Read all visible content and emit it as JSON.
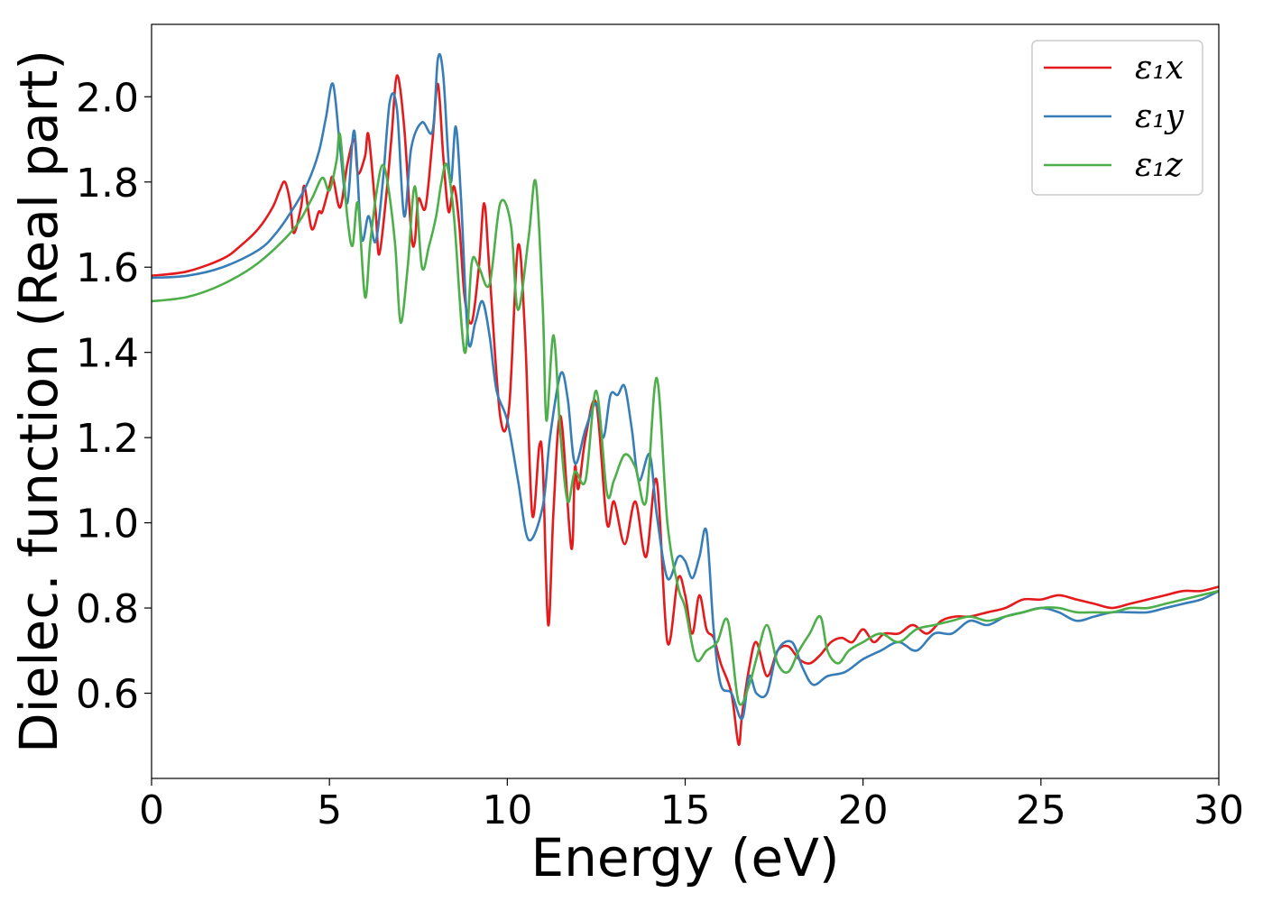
{
  "chart_data": {
    "type": "line",
    "title": "",
    "xlabel": "Energy (eV)",
    "ylabel": "Dielec. function (Real part)",
    "xlim": [
      0,
      30
    ],
    "ylim": [
      0.4,
      2.17
    ],
    "x_ticks": [
      0,
      5,
      10,
      15,
      20,
      25,
      30
    ],
    "y_ticks": [
      0.6,
      0.8,
      1.0,
      1.2,
      1.4,
      1.6,
      1.8,
      2.0
    ],
    "x_tick_labels": [
      "0",
      "5",
      "10",
      "15",
      "20",
      "25",
      "30"
    ],
    "y_tick_labels": [
      "0.6",
      "0.8",
      "1.0",
      "1.2",
      "1.4",
      "1.6",
      "1.8",
      "2.0"
    ],
    "grid": false,
    "legend_position": "top-right",
    "series": [
      {
        "name": "ε₁x",
        "color": "#e41a1c",
        "x": [
          0,
          1,
          2,
          2.5,
          3,
          3.4,
          3.6,
          3.75,
          3.9,
          4.0,
          4.2,
          4.3,
          4.5,
          4.7,
          4.8,
          5.0,
          5.1,
          5.3,
          5.5,
          5.7,
          5.8,
          6.0,
          6.1,
          6.3,
          6.4,
          6.6,
          6.75,
          6.9,
          7.1,
          7.3,
          7.4,
          7.5,
          7.7,
          7.9,
          8.05,
          8.2,
          8.35,
          8.5,
          8.65,
          8.8,
          9.0,
          9.2,
          9.35,
          9.5,
          9.8,
          10.05,
          10.3,
          10.5,
          10.7,
          10.9,
          11.0,
          11.15,
          11.3,
          11.5,
          11.8,
          11.9,
          12.0,
          12.2,
          12.5,
          12.8,
          13.0,
          13.3,
          13.6,
          13.9,
          14.2,
          14.5,
          14.8,
          15.0,
          15.2,
          15.4,
          15.6,
          15.8,
          16.0,
          16.3,
          16.5,
          16.6,
          16.8,
          17.0,
          17.3,
          17.6,
          17.9,
          18.2,
          18.5,
          18.8,
          19.1,
          19.4,
          19.7,
          20.0,
          20.3,
          20.6,
          21.0,
          21.4,
          21.8,
          22.2,
          22.6,
          23.0,
          23.5,
          24.0,
          24.5,
          25.0,
          25.5,
          26.0,
          26.5,
          27.0,
          27.5,
          28.0,
          28.5,
          29.0,
          29.5,
          30.0
        ],
        "y": [
          1.58,
          1.59,
          1.62,
          1.65,
          1.69,
          1.74,
          1.78,
          1.8,
          1.75,
          1.68,
          1.74,
          1.79,
          1.69,
          1.73,
          1.73,
          1.79,
          1.81,
          1.74,
          1.84,
          1.9,
          1.82,
          1.86,
          1.91,
          1.73,
          1.63,
          1.77,
          1.91,
          2.05,
          1.93,
          1.68,
          1.66,
          1.76,
          1.74,
          1.9,
          2.03,
          1.86,
          1.73,
          1.79,
          1.7,
          1.53,
          1.47,
          1.6,
          1.75,
          1.59,
          1.25,
          1.27,
          1.65,
          1.44,
          1.02,
          1.18,
          1.13,
          0.76,
          1.03,
          1.25,
          0.94,
          1.13,
          1.08,
          1.2,
          1.28,
          1.0,
          1.05,
          0.95,
          1.05,
          0.92,
          1.1,
          0.72,
          0.87,
          0.83,
          0.74,
          0.83,
          0.75,
          0.73,
          0.67,
          0.6,
          0.48,
          0.55,
          0.66,
          0.72,
          0.64,
          0.7,
          0.71,
          0.68,
          0.67,
          0.69,
          0.72,
          0.73,
          0.72,
          0.75,
          0.72,
          0.74,
          0.74,
          0.76,
          0.74,
          0.77,
          0.78,
          0.78,
          0.79,
          0.8,
          0.82,
          0.82,
          0.83,
          0.82,
          0.81,
          0.8,
          0.81,
          0.82,
          0.83,
          0.84,
          0.84,
          0.85
        ]
      },
      {
        "name": "ε₁y",
        "color": "#377eb8",
        "x": [
          0,
          1,
          2,
          3,
          3.5,
          4,
          4.4,
          4.7,
          4.9,
          5.1,
          5.3,
          5.5,
          5.7,
          5.9,
          6.1,
          6.3,
          6.5,
          6.7,
          6.9,
          7.1,
          7.3,
          7.6,
          7.9,
          8.05,
          8.2,
          8.4,
          8.55,
          8.7,
          8.9,
          9.1,
          9.3,
          9.5,
          9.7,
          10.0,
          10.3,
          10.6,
          11.0,
          11.2,
          11.5,
          11.7,
          11.9,
          12.2,
          12.5,
          12.7,
          12.9,
          13.1,
          13.3,
          13.5,
          13.7,
          14.0,
          14.2,
          14.5,
          14.8,
          15.0,
          15.2,
          15.4,
          15.6,
          15.8,
          16.0,
          16.3,
          16.6,
          16.8,
          17.0,
          17.3,
          17.6,
          18.0,
          18.3,
          18.6,
          19.0,
          19.5,
          20.0,
          20.5,
          21.0,
          21.5,
          22.0,
          22.5,
          23.0,
          23.5,
          24.0,
          24.5,
          25.0,
          25.5,
          26.0,
          26.5,
          27.0,
          27.5,
          28.0,
          28.5,
          29.0,
          29.5,
          30.0
        ],
        "y": [
          1.575,
          1.58,
          1.6,
          1.64,
          1.68,
          1.74,
          1.8,
          1.87,
          1.95,
          2.03,
          1.88,
          1.75,
          1.92,
          1.67,
          1.72,
          1.66,
          1.8,
          1.99,
          1.97,
          1.72,
          1.88,
          1.94,
          1.92,
          2.09,
          2.05,
          1.8,
          1.93,
          1.76,
          1.43,
          1.47,
          1.52,
          1.44,
          1.31,
          1.24,
          1.1,
          0.96,
          1.04,
          1.2,
          1.35,
          1.29,
          1.14,
          1.22,
          1.28,
          1.2,
          1.3,
          1.3,
          1.32,
          1.22,
          1.1,
          1.16,
          1.02,
          0.87,
          0.92,
          0.91,
          0.87,
          0.92,
          0.98,
          0.75,
          0.62,
          0.6,
          0.54,
          0.64,
          0.6,
          0.6,
          0.7,
          0.72,
          0.66,
          0.62,
          0.64,
          0.65,
          0.68,
          0.7,
          0.72,
          0.7,
          0.74,
          0.74,
          0.77,
          0.76,
          0.78,
          0.79,
          0.8,
          0.79,
          0.77,
          0.78,
          0.79,
          0.79,
          0.79,
          0.8,
          0.81,
          0.82,
          0.84
        ]
      },
      {
        "name": "ε₁z",
        "color": "#4daf4a",
        "x": [
          0,
          1,
          2,
          3,
          4,
          4.5,
          4.8,
          5.0,
          5.2,
          5.3,
          5.5,
          5.65,
          5.8,
          6.0,
          6.15,
          6.35,
          6.5,
          6.65,
          6.85,
          7.0,
          7.2,
          7.4,
          7.6,
          7.8,
          8.0,
          8.15,
          8.3,
          8.5,
          8.8,
          9.0,
          9.2,
          9.5,
          9.8,
          10.1,
          10.3,
          10.6,
          10.8,
          11.0,
          11.1,
          11.3,
          11.5,
          11.7,
          11.9,
          12.2,
          12.5,
          12.8,
          13.0,
          13.3,
          13.6,
          13.9,
          14.2,
          14.5,
          14.8,
          15.0,
          15.3,
          15.6,
          15.9,
          16.2,
          16.5,
          16.8,
          17.0,
          17.3,
          17.6,
          17.9,
          18.2,
          18.5,
          18.8,
          19.0,
          19.3,
          19.6,
          20.0,
          20.5,
          21.0,
          21.5,
          22.0,
          22.5,
          23.0,
          23.5,
          24.0,
          24.5,
          25.0,
          25.5,
          26.0,
          26.5,
          27.0,
          27.5,
          28.0,
          28.5,
          29.0,
          29.5,
          30.0
        ],
        "y": [
          1.52,
          1.53,
          1.56,
          1.61,
          1.69,
          1.76,
          1.81,
          1.78,
          1.85,
          1.91,
          1.72,
          1.65,
          1.75,
          1.53,
          1.66,
          1.79,
          1.84,
          1.79,
          1.65,
          1.47,
          1.6,
          1.79,
          1.6,
          1.65,
          1.72,
          1.8,
          1.84,
          1.72,
          1.4,
          1.61,
          1.6,
          1.56,
          1.75,
          1.7,
          1.5,
          1.67,
          1.8,
          1.5,
          1.24,
          1.44,
          1.2,
          1.05,
          1.12,
          1.1,
          1.31,
          1.07,
          1.1,
          1.16,
          1.13,
          1.05,
          1.34,
          1.0,
          0.85,
          0.8,
          0.68,
          0.7,
          0.72,
          0.77,
          0.58,
          0.62,
          0.68,
          0.76,
          0.67,
          0.65,
          0.7,
          0.74,
          0.78,
          0.7,
          0.67,
          0.7,
          0.72,
          0.74,
          0.72,
          0.75,
          0.76,
          0.77,
          0.78,
          0.77,
          0.78,
          0.79,
          0.8,
          0.8,
          0.79,
          0.79,
          0.79,
          0.8,
          0.8,
          0.81,
          0.82,
          0.83,
          0.84
        ]
      }
    ]
  }
}
